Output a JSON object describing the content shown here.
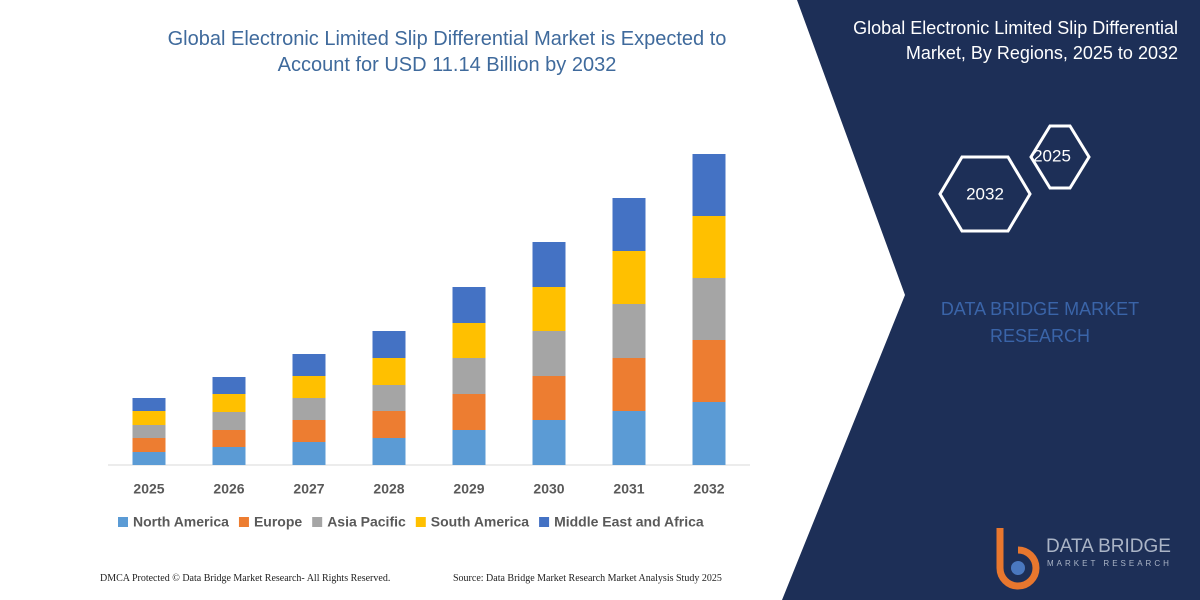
{
  "chart_data": {
    "type": "stacked-bar",
    "title": "Global Electronic Limited Slip Differential Market is Expected to Account for USD 11.14 Billion by 2032",
    "categories": [
      "2025",
      "2026",
      "2027",
      "2028",
      "2029",
      "2030",
      "2031",
      "2032"
    ],
    "series": [
      {
        "name": "North America",
        "color": "#5b9bd5",
        "values": [
          13,
          18,
          23,
          27,
          35,
          45,
          54,
          63
        ]
      },
      {
        "name": "Europe",
        "color": "#ed7d31",
        "values": [
          14,
          17,
          22,
          27,
          36,
          44,
          53,
          62
        ]
      },
      {
        "name": "Asia Pacific",
        "color": "#a5a5a5",
        "values": [
          13,
          18,
          22,
          26,
          36,
          45,
          54,
          62
        ]
      },
      {
        "name": "South America",
        "color": "#ffc000",
        "values": [
          14,
          18,
          22,
          27,
          35,
          44,
          53,
          62
        ]
      },
      {
        "name": "Middle East and Africa",
        "color": "#4472c4",
        "values": [
          13,
          17,
          22,
          27,
          36,
          45,
          53,
          62
        ]
      }
    ],
    "legend": "bottom"
  },
  "panel": {
    "title": "Global Electronic Limited Slip Differential Market, By Regions, 2025 to 2032",
    "hex_start": "2025",
    "hex_end": "2032",
    "brand": "DATA BRIDGE MARKET RESEARCH"
  },
  "logo": {
    "name": "DATA BRIDGE",
    "tagline": "MARKET RESEARCH"
  },
  "footer": {
    "left": "DMCA Protected © Data Bridge Market Research- All Rights Reserved.",
    "right": "Source: Data Bridge Market Research Market Analysis Study 2025"
  }
}
